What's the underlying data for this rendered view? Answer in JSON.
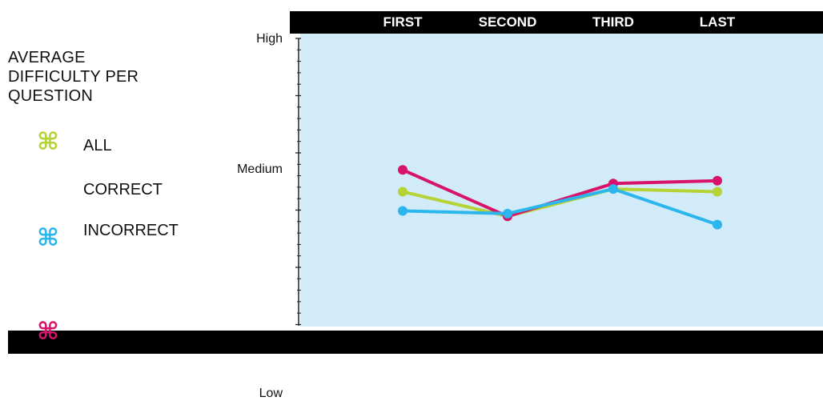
{
  "title_lines": [
    "AVERAGE",
    "DIFFICULTY PER",
    "QUESTION"
  ],
  "legend": [
    {
      "label": "ALL",
      "icon": "command-icon",
      "glyph": "⌘",
      "color": "#b5d334"
    },
    {
      "label": "CORRECT",
      "icon": "command-icon",
      "glyph": "⌘",
      "color": "#d8136b"
    },
    {
      "label": "INCORRECT",
      "icon": "command-icon",
      "glyph": "⌘",
      "color": "#2bb6ee"
    }
  ],
  "colors": {
    "plot_background": "#d1ecf8",
    "bar": "#000000",
    "header_text": "#ffffff",
    "axis": "#222222"
  },
  "chart_data": {
    "type": "line",
    "categories": [
      "FIRST",
      "SECOND",
      "THIRD",
      "LAST"
    ],
    "y_tick_labels": [
      "Low",
      "Medium",
      "High"
    ],
    "ylim": [
      0,
      10
    ],
    "label_values": {
      "Low": 0,
      "Medium": 5,
      "High": 10
    },
    "series": [
      {
        "name": "ALL",
        "color": "#b5d334",
        "values": [
          4.4,
          3.5,
          4.5,
          4.4
        ]
      },
      {
        "name": "CORRECT",
        "color": "#d8136b",
        "values": [
          5.2,
          3.5,
          4.7,
          4.8
        ]
      },
      {
        "name": "INCORRECT",
        "color": "#2bb6ee",
        "values": [
          3.7,
          3.6,
          4.5,
          3.2
        ]
      }
    ],
    "legend_position": "left",
    "grid": false
  }
}
